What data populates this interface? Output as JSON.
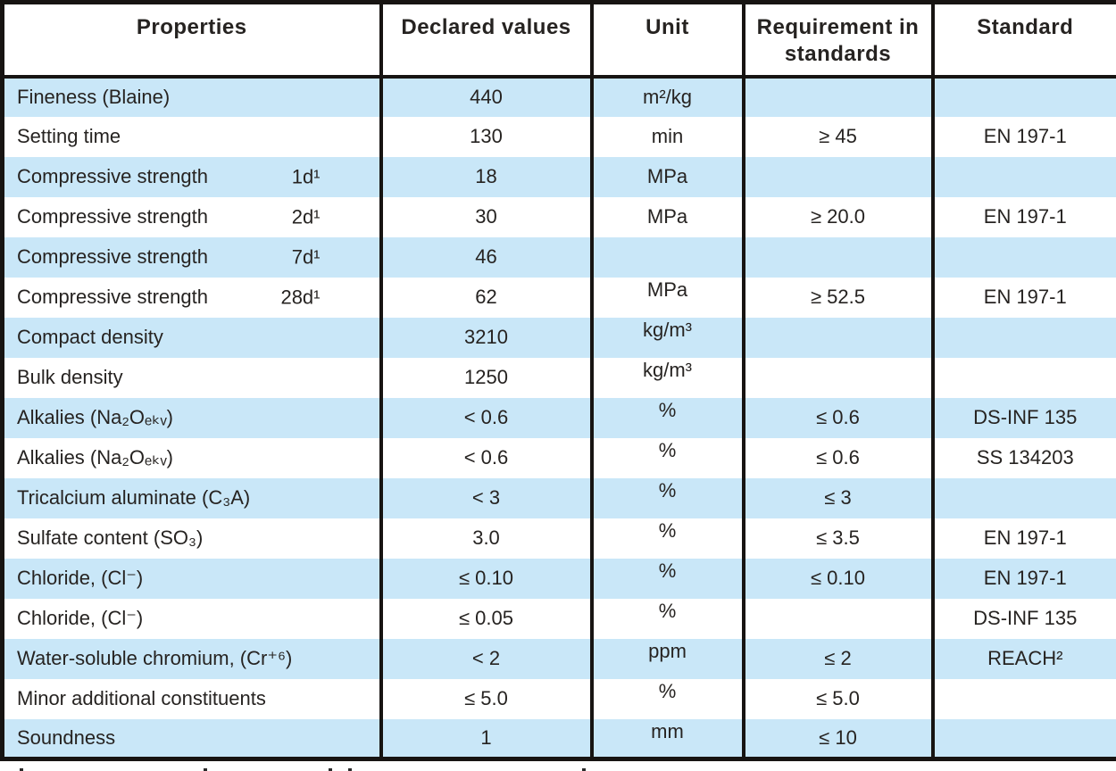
{
  "table": {
    "columns": [
      "Properties",
      "Declared values",
      "Unit",
      "Requirement in standards",
      "Standard"
    ],
    "rows": [
      {
        "property": "Fineness (Blaine)",
        "age": "",
        "declared": "440",
        "unit": "m²/kg",
        "requirement": "",
        "standard": ""
      },
      {
        "property": "Setting time",
        "age": "",
        "declared": "130",
        "unit": "min",
        "requirement": "≥ 45",
        "standard": "EN 197-1"
      },
      {
        "property": "Compressive strength",
        "age": "1d¹",
        "declared": "18",
        "unit": "MPa",
        "requirement": "",
        "standard": ""
      },
      {
        "property": "Compressive strength",
        "age": "2d¹",
        "declared": "30",
        "unit": "MPa",
        "requirement": "≥ 20.0",
        "standard": "EN 197-1"
      },
      {
        "property": "Compressive strength",
        "age": "7d¹",
        "declared": "46",
        "unit": "",
        "requirement": "",
        "standard": ""
      },
      {
        "property": "Compressive strength",
        "age": "28d¹",
        "declared": "62",
        "unit": "MPa",
        "requirement": "≥ 52.5",
        "standard": "EN 197-1"
      },
      {
        "property": "Compact density",
        "age": "",
        "declared": "3210",
        "unit": "kg/m³",
        "requirement": "",
        "standard": ""
      },
      {
        "property": "Bulk density",
        "age": "",
        "declared": "1250",
        "unit": "kg/m³",
        "requirement": "",
        "standard": ""
      },
      {
        "property": "Alkalies (Na₂Oₑₖᵥ)",
        "age": "",
        "declared": "< 0.6",
        "unit": "%",
        "requirement": "≤ 0.6",
        "standard": "DS-INF 135"
      },
      {
        "property": "Alkalies (Na₂Oₑₖᵥ)",
        "age": "",
        "declared": "< 0.6",
        "unit": "%",
        "requirement": "≤ 0.6",
        "standard": "SS 134203"
      },
      {
        "property": "Tricalcium aluminate (C₃A)",
        "age": "",
        "declared": "< 3",
        "unit": "%",
        "requirement": "≤ 3",
        "standard": ""
      },
      {
        "property": "Sulfate content (SO₃)",
        "age": "",
        "declared": "3.0",
        "unit": "%",
        "requirement": "≤ 3.5",
        "standard": "EN 197-1"
      },
      {
        "property": "Chloride, (Cl⁻)",
        "age": "",
        "declared": "≤ 0.10",
        "unit": "%",
        "requirement": "≤ 0.10",
        "standard": "EN 197-1"
      },
      {
        "property": "Chloride, (Cl⁻)",
        "age": "",
        "declared": "≤ 0.05",
        "unit": "%",
        "requirement": "",
        "standard": "DS-INF 135"
      },
      {
        "property": "Water-soluble chromium, (Cr⁺⁶)",
        "age": "",
        "declared": "< 2",
        "unit": "ppm",
        "requirement": "≤ 2",
        "standard": "REACH²"
      },
      {
        "property": "Minor additional constituents",
        "age": "",
        "declared": "≤ 5.0",
        "unit": "%",
        "requirement": "≤ 5.0",
        "standard": ""
      },
      {
        "property": "Soundness",
        "age": "",
        "declared": "1",
        "unit": "mm",
        "requirement": "≤ 10",
        "standard": ""
      }
    ],
    "colors": {
      "row_blue": "#c9e7f8",
      "row_white": "#ffffff",
      "border": "#171412",
      "text": "#262321"
    }
  }
}
